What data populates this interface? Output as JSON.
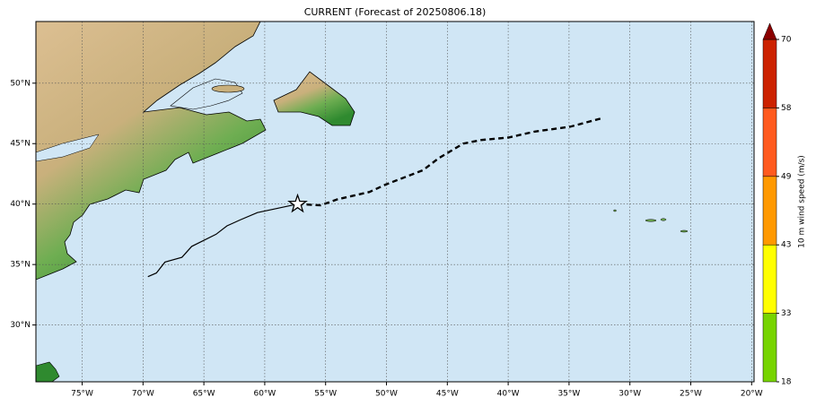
{
  "chart_data": {
    "type": "map",
    "title": "CURRENT (Forecast of 20250806.18)",
    "xlim": [
      -78.8,
      -19.8
    ],
    "ylim": [
      25.3,
      55.1
    ],
    "xticks": [
      {
        "value": -75,
        "label": "75°W"
      },
      {
        "value": -70,
        "label": "70°W"
      },
      {
        "value": -65,
        "label": "65°W"
      },
      {
        "value": -60,
        "label": "60°W"
      },
      {
        "value": -55,
        "label": "55°W"
      },
      {
        "value": -50,
        "label": "50°W"
      },
      {
        "value": -45,
        "label": "45°W"
      },
      {
        "value": -40,
        "label": "40°W"
      },
      {
        "value": -35,
        "label": "35°W"
      },
      {
        "value": -30,
        "label": "30°W"
      },
      {
        "value": -25,
        "label": "25°W"
      },
      {
        "value": -20,
        "label": "20°W"
      }
    ],
    "yticks": [
      {
        "value": 30,
        "label": "30°N"
      },
      {
        "value": 35,
        "label": "35°N"
      },
      {
        "value": 40,
        "label": "40°N"
      },
      {
        "value": 45,
        "label": "45°N"
      },
      {
        "value": 50,
        "label": "50°N"
      }
    ],
    "grid": true,
    "tracks": [
      {
        "style": "solid",
        "color": "#000000",
        "x": [
          -69.6,
          -68.9,
          -68.2,
          -66.8,
          -66.0,
          -64.0,
          -63.1,
          -62.0,
          -60.6,
          -57.3
        ],
        "y": [
          34.0,
          34.3,
          35.2,
          35.6,
          36.5,
          37.5,
          38.2,
          38.7,
          39.3,
          40.0
        ]
      },
      {
        "style": "dashed",
        "color": "#000000",
        "marker": "star",
        "x": [
          -57.3,
          -55.4,
          -54.0,
          -51.4,
          -50.1,
          -47.0,
          -45.7,
          -43.7,
          -42.2,
          -40.0,
          -37.8,
          -34.9,
          -32.3
        ],
        "y": [
          40.0,
          39.9,
          40.4,
          41.0,
          41.6,
          42.8,
          43.8,
          45.0,
          45.3,
          45.5,
          46.0,
          46.4,
          47.1
        ]
      }
    ],
    "colorbar": {
      "label": "10 m wind speed (m/s)",
      "levels": [
        18,
        33,
        43,
        49,
        58,
        70
      ],
      "colors": [
        "#77d400",
        "#ffff00",
        "#ff9900",
        "#ff5a1e",
        "#cc2200"
      ],
      "extend_color": "#8b0000"
    }
  }
}
